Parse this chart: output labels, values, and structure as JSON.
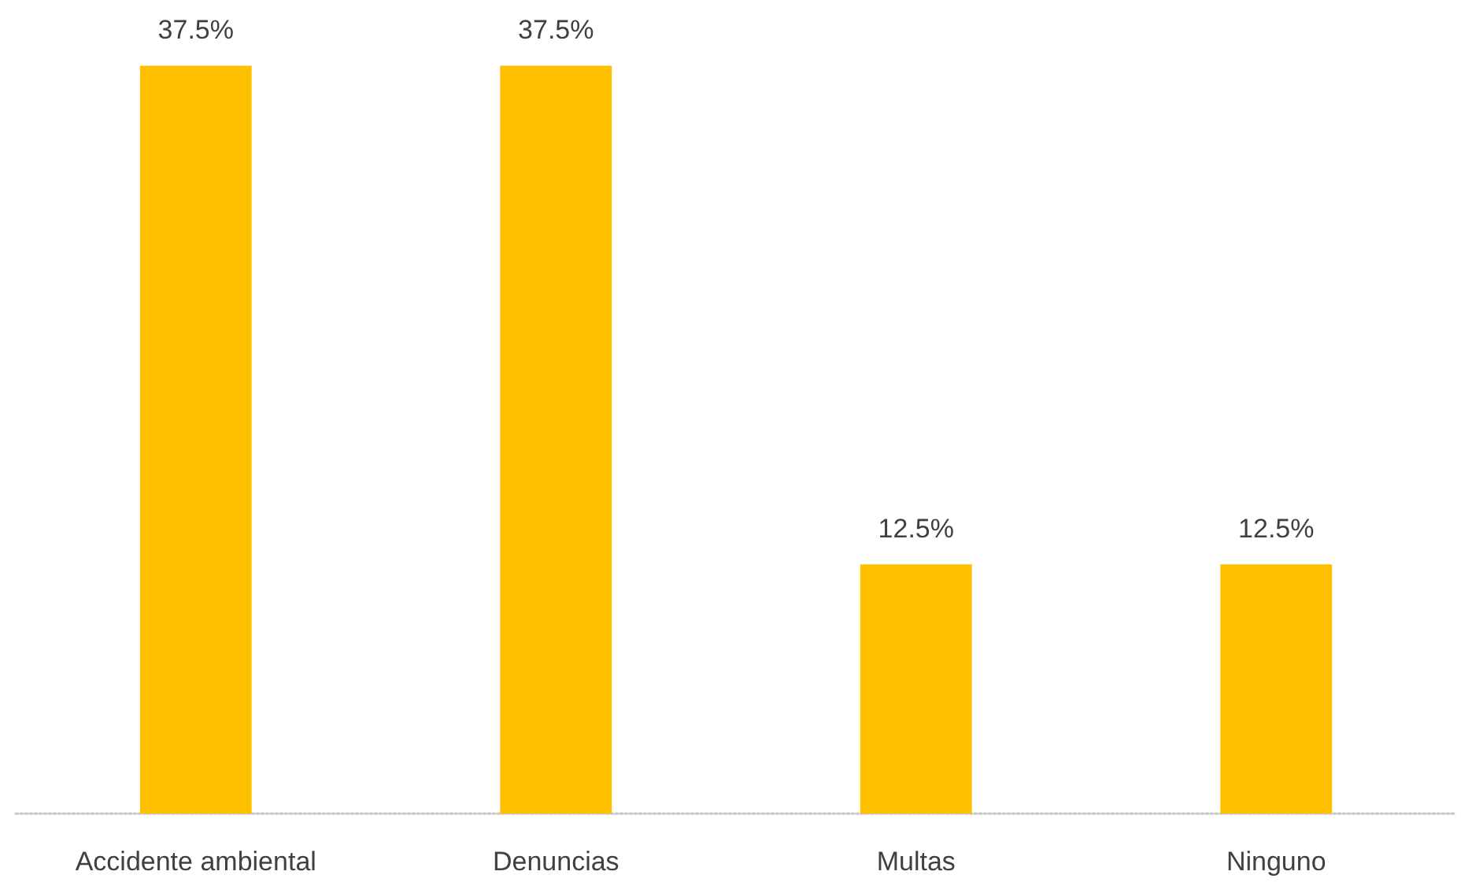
{
  "chart_data": {
    "type": "bar",
    "categories": [
      "Accidente ambiental",
      "Denuncias",
      "Multas",
      "Ninguno"
    ],
    "values": [
      37.5,
      37.5,
      12.5,
      12.5
    ],
    "value_labels": [
      "37.5%",
      "37.5%",
      "12.5%",
      "12.5%"
    ],
    "color": "#ffc000"
  }
}
